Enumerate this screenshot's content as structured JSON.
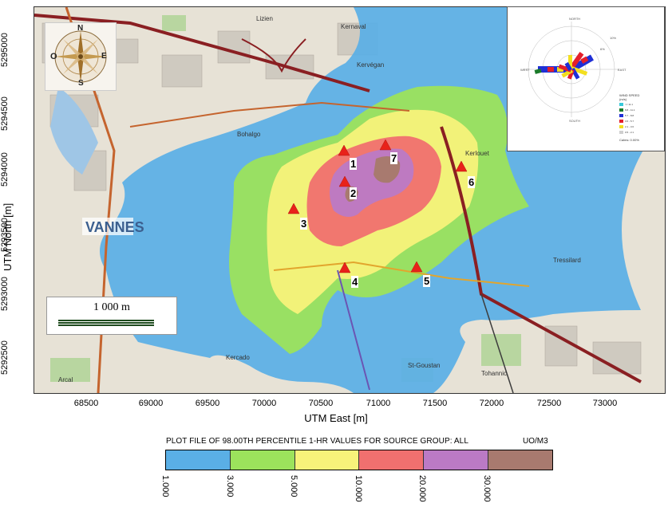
{
  "map": {
    "place_labels": {
      "vannes": "VANNES",
      "kernaval": "Kernaval",
      "bohalgo": "Bohalgo",
      "kercado": "Kercado",
      "sainte_goustan": "St-Goustan",
      "kerlouet": "Kerlouet",
      "tohannic": "Tohannic",
      "arcal": "Arcal",
      "tressilard": "Tressilard",
      "lezien": "Lizien",
      "kervegan": "Kervégan"
    }
  },
  "axes": {
    "x_label": "UTM East [m]",
    "y_label": "UTM North [m]",
    "x_ticks": [
      "68500",
      "69000",
      "69500",
      "70000",
      "70500",
      "71000",
      "71500",
      "72000",
      "72500",
      "73000"
    ],
    "y_ticks": [
      "5295000",
      "5294500",
      "5294000",
      "5293500",
      "5293000",
      "5292500"
    ]
  },
  "scale_bar": {
    "label": "1 000 m"
  },
  "compass": {
    "north": "N",
    "south": "S",
    "east": "E",
    "west": "O"
  },
  "receptors": [
    {
      "id": "1"
    },
    {
      "id": "2"
    },
    {
      "id": "3"
    },
    {
      "id": "4"
    },
    {
      "id": "5"
    },
    {
      "id": "6"
    },
    {
      "id": "7"
    }
  ],
  "legend": {
    "title": "PLOT FILE OF 98.00TH PERCENTILE 1-HR VALUES FOR SOURCE GROUP: ALL",
    "units": "UO/M3",
    "levels": [
      "1.000",
      "3.000",
      "5.000",
      "10.000",
      "20.000",
      "30.000"
    ],
    "colors": [
      "#5aafe6",
      "#9ce35c",
      "#f7f27a",
      "#f0706f",
      "#bb7ac5",
      "#a87a6f"
    ]
  },
  "windrose": {
    "legend_title": "WIND SPEED",
    "legend_unit": "(m/s)",
    "bins": [
      ">= 11.1",
      "8.8 - 11.1",
      "5.7 - 8.8",
      "3.6 - 5.7",
      "2.1 - 3.6",
      "0.5 - 2.1"
    ],
    "bin_colors": [
      "#37c8d9",
      "#1a7a2a",
      "#1f2fd6",
      "#e41f2b",
      "#f3df1f",
      "#cfcfcf"
    ],
    "calms": "Calms: 0.00%",
    "compass": {
      "north": "NORTH",
      "south": "SOUTH",
      "east": "EAST",
      "west": "WEST"
    },
    "ring_labels": [
      "10%",
      "6%"
    ]
  },
  "chart_data": {
    "type": "heatmap",
    "title": "PLOT FILE OF 98.00TH PERCENTILE 1-HR VALUES FOR SOURCE GROUP: ALL",
    "xlabel": "UTM East [m]",
    "ylabel": "UTM North [m]",
    "xlim": [
      68050,
      73500
    ],
    "ylim": [
      5292050,
      5295620
    ],
    "contour_levels": [
      1.0,
      3.0,
      5.0,
      10.0,
      20.0,
      30.0
    ],
    "units": "UO/M3"
  }
}
